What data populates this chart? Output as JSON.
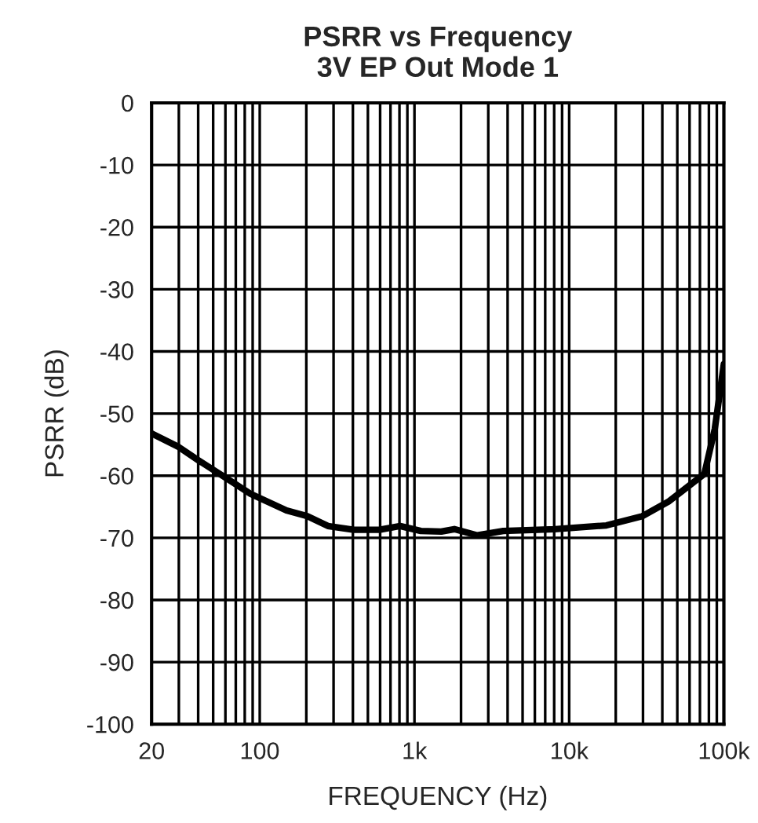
{
  "chart_data": {
    "type": "line",
    "title": "PSRR vs Frequency\n3V EP Out Mode 1",
    "xlabel": "FREQUENCY (Hz)",
    "ylabel": "PSRR (dB)",
    "log": "x",
    "xlim": [
      20,
      100000
    ],
    "ylim": [
      -100,
      0
    ],
    "xticks": [
      20,
      100,
      {
        "value": 1000,
        "label": "1k"
      },
      {
        "value": 10000,
        "label": "10k"
      },
      {
        "value": 100000,
        "label": "100k"
      }
    ],
    "yticks": [
      -100,
      -90,
      -80,
      -70,
      -60,
      -50,
      -40,
      -30,
      -20,
      -10,
      0
    ],
    "grid": true,
    "series": [
      {
        "color": "#000000",
        "x": [
          20,
          30,
          40,
          59,
          87,
          149,
          203,
          276,
          405,
          594,
          808,
          1100,
          1490,
          1810,
          2550,
          3750,
          8070,
          17400,
          29800,
          43700,
          74800,
          87300,
          100000
        ],
        "values": [
          -53.2,
          -55.4,
          -57.5,
          -60.2,
          -62.9,
          -65.6,
          -66.5,
          -68.1,
          -68.7,
          -68.7,
          -68.1,
          -68.9,
          -69.0,
          -68.6,
          -69.6,
          -68.9,
          -68.6,
          -68.0,
          -66.5,
          -64.2,
          -59.7,
          -52.5,
          -42
        ]
      }
    ]
  }
}
